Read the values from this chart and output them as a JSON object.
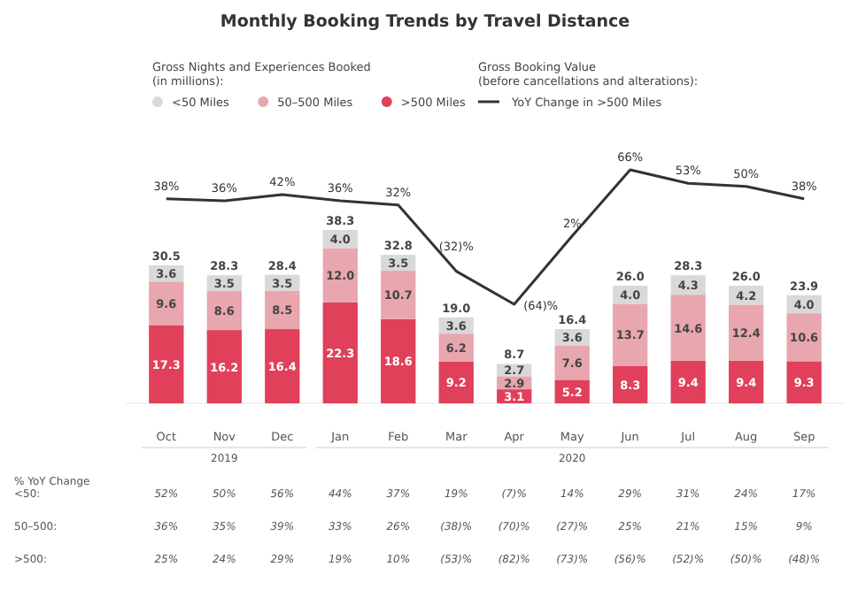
{
  "chart_data": {
    "type": "bar",
    "title": "Monthly Booking Trends by Travel Distance",
    "legend_title": "Gross Nights and Experiences Booked (in millions):",
    "stacked": true,
    "legend": "top left",
    "tick_labels": "x",
    "categories": [
      "Oct",
      "Nov",
      "Dec",
      "Jan",
      "Feb",
      "Mar",
      "Apr",
      "May",
      "Jun",
      "Jul",
      "Aug",
      "Sep"
    ],
    "series": [
      {
        "name": ">500 Miles",
        "color": "#e0405a",
        "values": [
          17.3,
          16.2,
          16.4,
          22.3,
          18.6,
          9.2,
          3.1,
          5.2,
          8.3,
          9.4,
          9.4,
          9.3
        ],
        "value_labels": [
          "17.3",
          "16.2",
          "16.4",
          "22.3",
          "18.6",
          "9.2",
          "3.1",
          "5.2",
          "8.3",
          "9.4",
          "9.4",
          "9.3"
        ]
      },
      {
        "name": "50–500 Miles",
        "color": "#e8a6ae",
        "values": [
          9.6,
          8.6,
          8.5,
          12.0,
          10.7,
          6.2,
          2.9,
          7.6,
          13.7,
          14.6,
          12.4,
          10.6
        ],
        "value_labels": [
          "9.6",
          "8.6",
          "8.5",
          "12.0",
          "10.7",
          "6.2",
          "2.9",
          "7.6",
          "13.7",
          "14.6",
          "12.4",
          "10.6"
        ]
      },
      {
        "name": "<50 Miles",
        "color": "#d9d9d9",
        "values": [
          3.6,
          3.5,
          3.5,
          4.0,
          3.5,
          3.6,
          2.7,
          3.6,
          4.0,
          4.3,
          4.2,
          4.0
        ],
        "value_labels": [
          "3.6",
          "3.5",
          "3.5",
          "4.0",
          "3.5",
          "3.6",
          "2.7",
          "3.6",
          "4.0",
          "4.3",
          "4.2",
          "4.0"
        ]
      },
      {
        "name": "YoY Change in >500 Miles",
        "type": "line",
        "axis": "y2",
        "color": "#333333",
        "marker": "none",
        "values": [
          38,
          36,
          42,
          36,
          32,
          -32,
          -64,
          2,
          66,
          53,
          50,
          38
        ],
        "value_labels": [
          "38%",
          "36%",
          "42%",
          "36%",
          "32%",
          "(32)%",
          "(64)%",
          "2%",
          "66%",
          "53%",
          "50%",
          "38%"
        ]
      }
    ],
    "totals": [
      "30.5",
      "28.3",
      "28.4",
      "38.3",
      "32.8",
      "19.0",
      "8.7",
      "16.4",
      "26.0",
      "28.3",
      "26.0",
      "23.9"
    ],
    "annotations": [
      "Gross Booking Value (before cancellations and alterations):",
      "2019",
      "2020",
      "% YoY Change",
      "<50:",
      "52%",
      "50%",
      "56%",
      "44%",
      "37%",
      "19%",
      "(7)%",
      "14%",
      "29%",
      "31%",
      "24%",
      "17%",
      "50–500:",
      "36%",
      "35%",
      "39%",
      "33%",
      "26%",
      "(38)%",
      "(70)%",
      "(27)%",
      "25%",
      "21%",
      "15%",
      "9%",
      ">500:",
      "25%",
      "24%",
      "29%",
      "19%",
      "10%",
      "(53)%",
      "(82)%",
      "(73)%",
      "(56)%",
      "(52)%",
      "(50)%",
      "(48)%"
    ]
  }
}
